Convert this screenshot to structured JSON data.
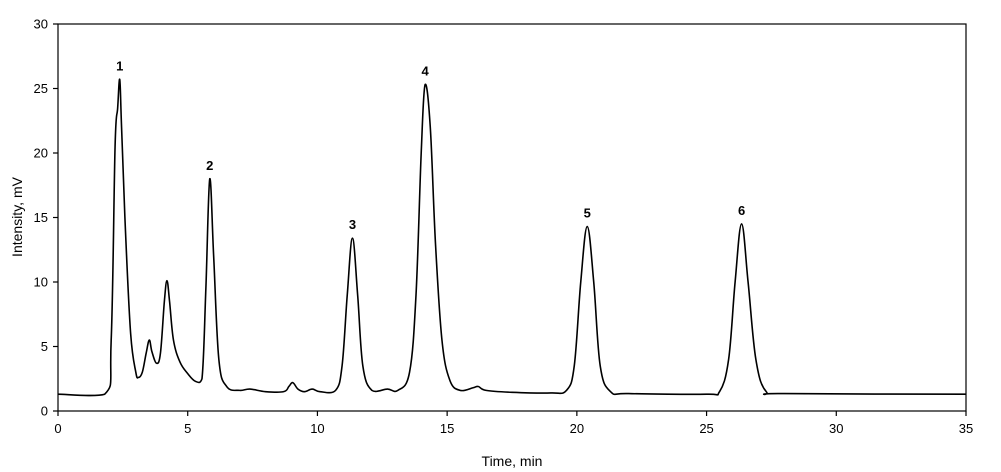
{
  "chart_data": {
    "type": "line",
    "title": "",
    "xlabel": "Time, min",
    "ylabel": "Intensity, mV",
    "xlim": [
      0,
      35
    ],
    "ylim": [
      0,
      30
    ],
    "xticks": [
      0,
      5,
      10,
      15,
      20,
      25,
      30,
      35
    ],
    "yticks": [
      0,
      5,
      10,
      15,
      20,
      25,
      30
    ],
    "grid": false,
    "baseline": 1.3,
    "series": [
      {
        "color": "#000000",
        "points": [
          [
            0,
            1.3
          ],
          [
            1.8,
            1.3
          ],
          [
            2.05,
            5.5
          ],
          [
            2.2,
            20.5
          ],
          [
            2.3,
            23.5
          ],
          [
            2.38,
            25.7
          ],
          [
            2.45,
            22.0
          ],
          [
            2.6,
            14.0
          ],
          [
            2.8,
            6.0
          ],
          [
            3.0,
            3.0
          ],
          [
            3.1,
            2.6
          ],
          [
            3.25,
            3.0
          ],
          [
            3.4,
            4.5
          ],
          [
            3.52,
            5.5
          ],
          [
            3.62,
            4.6
          ],
          [
            3.8,
            3.7
          ],
          [
            3.95,
            4.5
          ],
          [
            4.1,
            8.5
          ],
          [
            4.2,
            10.1
          ],
          [
            4.3,
            8.5
          ],
          [
            4.45,
            5.5
          ],
          [
            4.7,
            3.8
          ],
          [
            5.0,
            2.9
          ],
          [
            5.3,
            2.3
          ],
          [
            5.55,
            2.5
          ],
          [
            5.7,
            9.5
          ],
          [
            5.85,
            18.0
          ],
          [
            6.0,
            12.0
          ],
          [
            6.2,
            4.0
          ],
          [
            6.5,
            1.9
          ],
          [
            7.0,
            1.6
          ],
          [
            7.4,
            1.7
          ],
          [
            8.0,
            1.5
          ],
          [
            8.7,
            1.5
          ],
          [
            8.9,
            1.9
          ],
          [
            9.05,
            2.2
          ],
          [
            9.25,
            1.7
          ],
          [
            9.5,
            1.5
          ],
          [
            9.8,
            1.7
          ],
          [
            10.1,
            1.5
          ],
          [
            10.7,
            1.6
          ],
          [
            10.95,
            3.5
          ],
          [
            11.15,
            9.0
          ],
          [
            11.35,
            13.4
          ],
          [
            11.55,
            9.0
          ],
          [
            11.75,
            3.5
          ],
          [
            12.1,
            1.6
          ],
          [
            12.7,
            1.7
          ],
          [
            13.1,
            1.6
          ],
          [
            13.55,
            3.0
          ],
          [
            13.8,
            9.0
          ],
          [
            14.0,
            20.0
          ],
          [
            14.15,
            25.3
          ],
          [
            14.35,
            22.0
          ],
          [
            14.55,
            13.0
          ],
          [
            14.8,
            5.5
          ],
          [
            15.1,
            2.4
          ],
          [
            15.5,
            1.6
          ],
          [
            16.0,
            1.8
          ],
          [
            16.2,
            1.9
          ],
          [
            16.5,
            1.6
          ],
          [
            17.5,
            1.45
          ],
          [
            19.0,
            1.4
          ],
          [
            19.6,
            1.6
          ],
          [
            19.9,
            3.5
          ],
          [
            20.15,
            10.0
          ],
          [
            20.4,
            14.3
          ],
          [
            20.65,
            10.0
          ],
          [
            20.9,
            3.5
          ],
          [
            21.3,
            1.5
          ],
          [
            22.0,
            1.35
          ],
          [
            25.0,
            1.3
          ],
          [
            25.5,
            1.5
          ],
          [
            25.85,
            4.0
          ],
          [
            26.1,
            10.0
          ],
          [
            26.35,
            14.5
          ],
          [
            26.6,
            10.0
          ],
          [
            26.9,
            4.0
          ],
          [
            27.3,
            1.5
          ],
          [
            28.0,
            1.35
          ],
          [
            35,
            1.3
          ]
        ]
      }
    ],
    "peak_labels": [
      {
        "text": "1",
        "x": 2.38,
        "y": 25.7
      },
      {
        "text": "2",
        "x": 5.85,
        "y": 18.0
      },
      {
        "text": "3",
        "x": 11.35,
        "y": 13.4
      },
      {
        "text": "4",
        "x": 14.15,
        "y": 25.3
      },
      {
        "text": "5",
        "x": 20.4,
        "y": 14.3
      },
      {
        "text": "6",
        "x": 26.35,
        "y": 14.5
      }
    ]
  }
}
